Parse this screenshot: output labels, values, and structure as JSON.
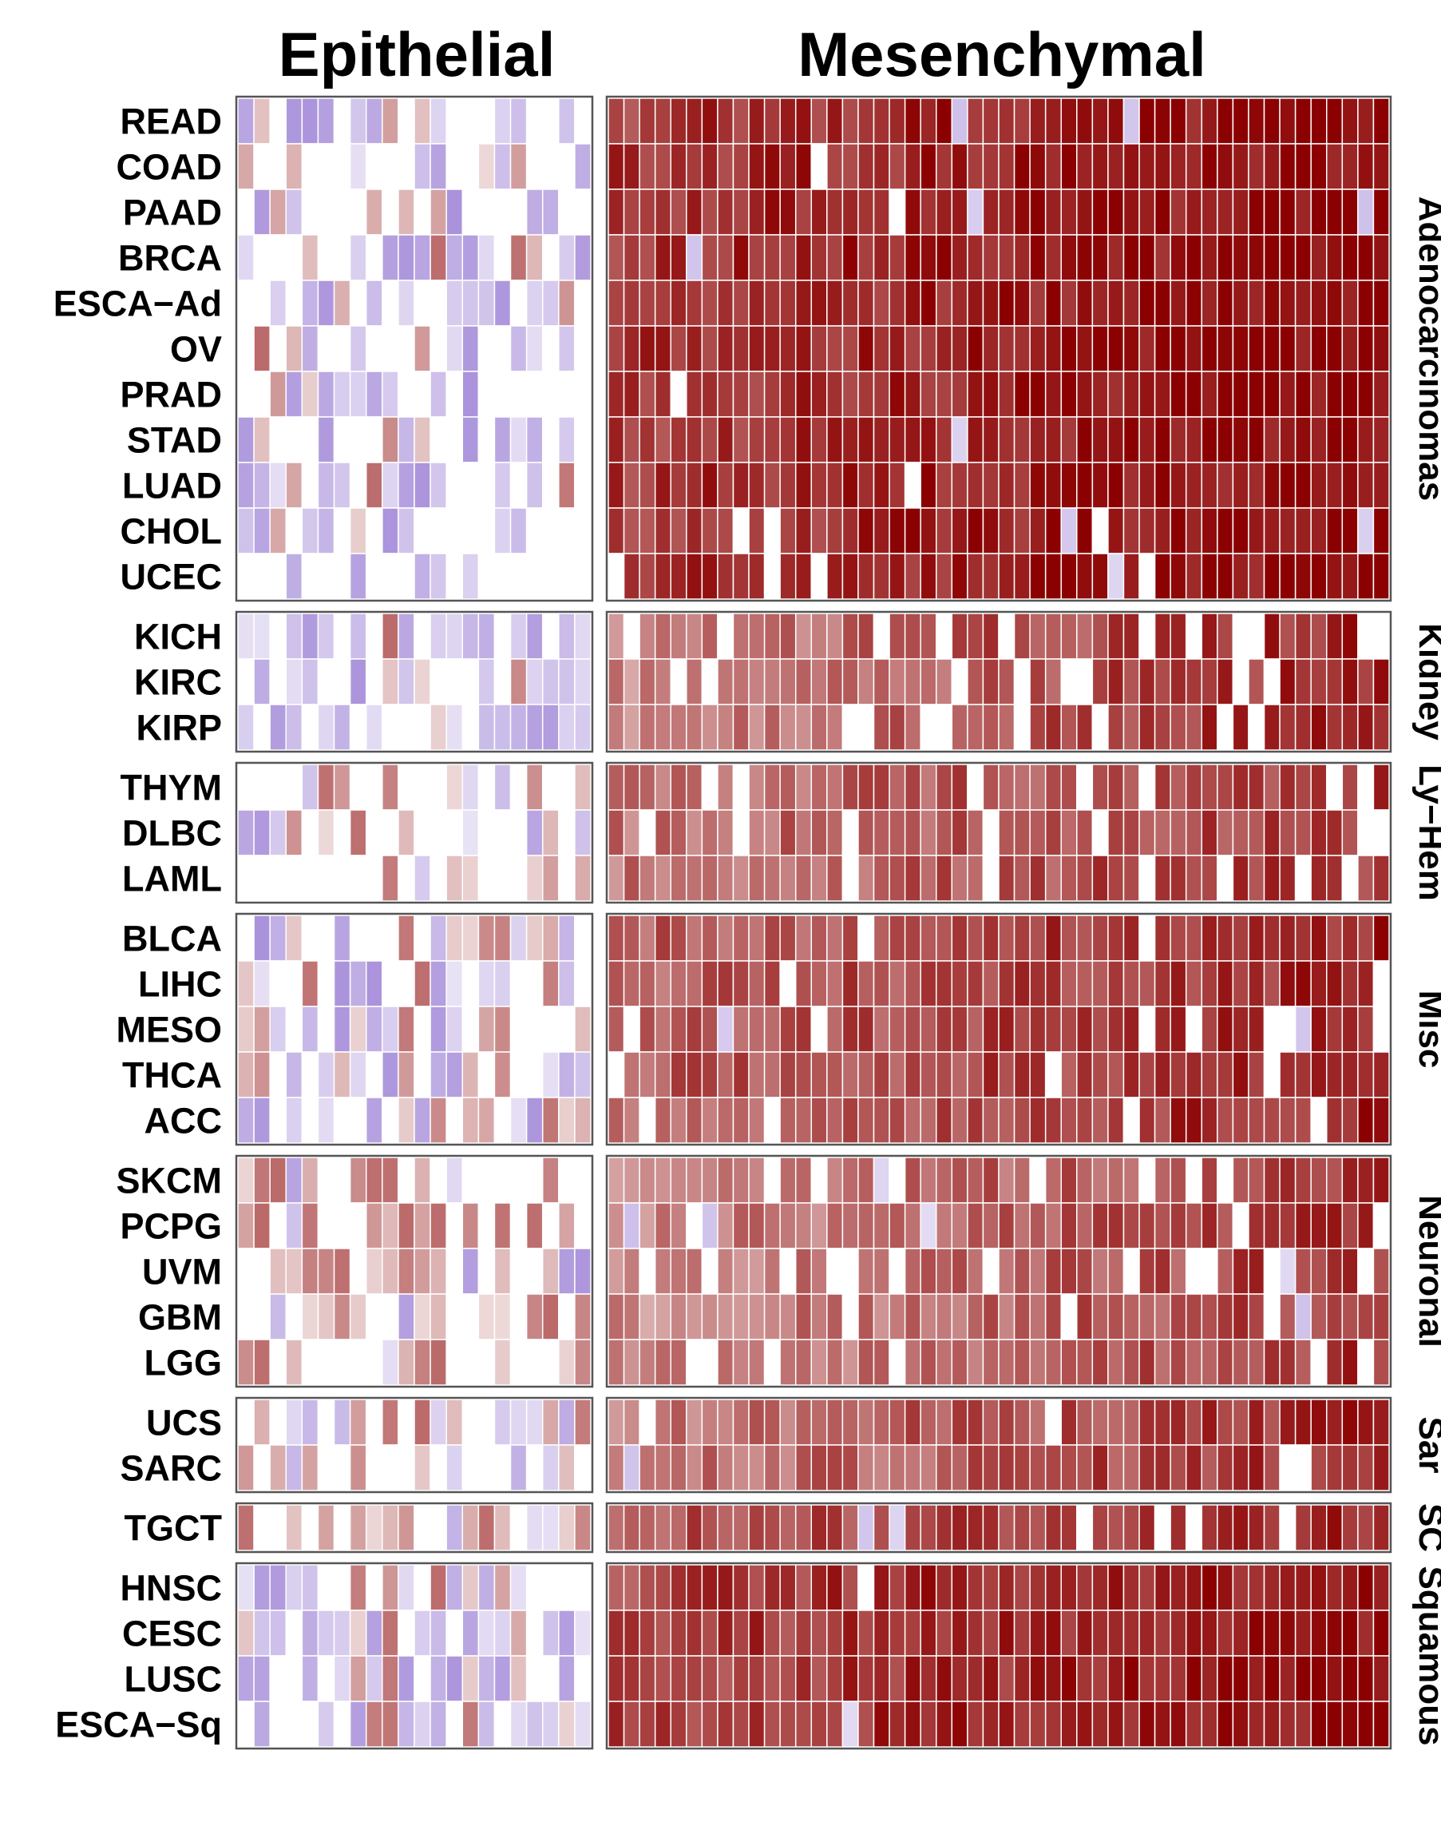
{
  "chart_data": {
    "type": "heatmap",
    "column_groups": [
      "Epithelial",
      "Mesenchymal"
    ],
    "epithelial_columns": 22,
    "mesenchymal_columns": 50,
    "value_range": [
      -1,
      1
    ],
    "colors": {
      "negative": "#8e6fcf",
      "zero": "#ffffff",
      "positive": "#8b0000",
      "grid": "#ffffff",
      "frame": "#555555"
    },
    "row_groups": [
      {
        "name": "Adenocarcinomas",
        "rows": [
          "READ",
          "COAD",
          "PAAD",
          "BRCA",
          "ESCA−Ad",
          "OV",
          "PRAD",
          "STAD",
          "LUAD",
          "CHOL",
          "UCEC"
        ],
        "base": 0.78,
        "gradient": 0.22,
        "blank": 0.015,
        "epiNeg": 0.35,
        "epiPos": 0.15
      },
      {
        "name": "Kidney",
        "rows": [
          "KICH",
          "KIRC",
          "KIRP"
        ],
        "base": 0.48,
        "gradient": 0.4,
        "blank": 0.16,
        "epiNeg": 0.5,
        "epiPos": 0.08
      },
      {
        "name": "Ly−Hem",
        "rows": [
          "THYM",
          "DLBC",
          "LAML"
        ],
        "base": 0.55,
        "gradient": 0.25,
        "blank": 0.18,
        "epiNeg": 0.1,
        "epiPos": 0.35
      },
      {
        "name": "Misc",
        "rows": [
          "BLCA",
          "LIHC",
          "MESO",
          "THCA",
          "ACC"
        ],
        "base": 0.62,
        "gradient": 0.25,
        "blank": 0.08,
        "epiNeg": 0.3,
        "epiPos": 0.3
      },
      {
        "name": "Neuronal",
        "rows": [
          "SKCM",
          "PCPG",
          "UVM",
          "GBM",
          "LGG"
        ],
        "base": 0.45,
        "gradient": 0.35,
        "blank": 0.1,
        "epiNeg": 0.15,
        "epiPos": 0.4
      },
      {
        "name": "Sar",
        "rows": [
          "UCS",
          "SARC"
        ],
        "base": 0.5,
        "gradient": 0.35,
        "blank": 0.08,
        "epiNeg": 0.25,
        "epiPos": 0.2
      },
      {
        "name": "SC",
        "rows": [
          "TGCT"
        ],
        "base": 0.68,
        "gradient": 0.2,
        "blank": 0.08,
        "epiNeg": 0.1,
        "epiPos": 0.5
      },
      {
        "name": "Squamous",
        "rows": [
          "HNSC",
          "CESC",
          "LUSC",
          "ESCA−Sq"
        ],
        "base": 0.74,
        "gradient": 0.22,
        "blank": 0.01,
        "epiNeg": 0.45,
        "epiPos": 0.2
      }
    ]
  }
}
